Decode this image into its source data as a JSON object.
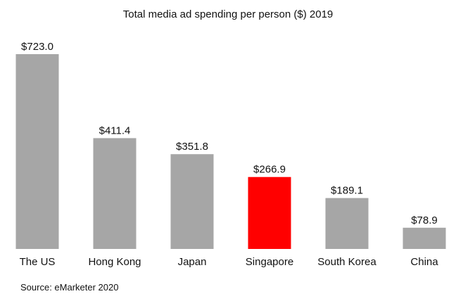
{
  "chart_data": {
    "type": "bar",
    "title": "Total media ad spending per person ($) 2019",
    "xlabel": "",
    "ylabel": "",
    "categories": [
      "The US",
      "Hong Kong",
      "Japan",
      "Singapore",
      "South Korea",
      "China"
    ],
    "values": [
      723.0,
      411.4,
      351.8,
      266.9,
      189.1,
      78.9
    ],
    "value_labels": [
      "$723.0",
      "$411.4",
      "$351.8",
      "$266.9",
      "$189.1",
      "$78.9"
    ],
    "ylim": [
      0,
      800
    ],
    "grid": false,
    "legend": "none",
    "colors": {
      "default": "#a6a6a6",
      "highlight": "#ff0000"
    },
    "highlight_category": "Singapore"
  },
  "source": "Source: eMarketer 2020"
}
